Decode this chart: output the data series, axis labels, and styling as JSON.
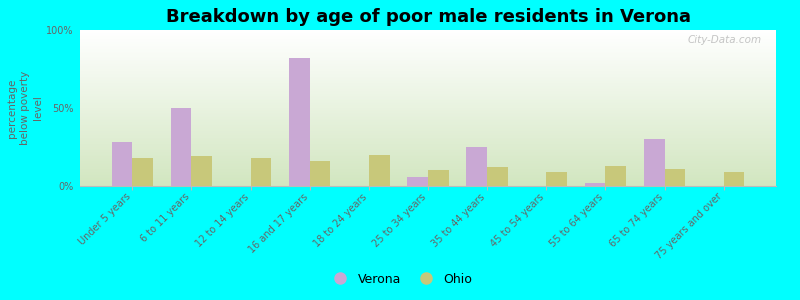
{
  "title": "Breakdown by age of poor male residents in Verona",
  "ylabel": "percentage\nbelow poverty\nlevel",
  "categories": [
    "Under 5 years",
    "6 to 11 years",
    "12 to 14 years",
    "16 and 17 years",
    "18 to 24 years",
    "25 to 34 years",
    "35 to 44 years",
    "45 to 54 years",
    "55 to 64 years",
    "65 to 74 years",
    "75 years and over"
  ],
  "verona_values": [
    28,
    50,
    0,
    82,
    0,
    6,
    25,
    0,
    2,
    30,
    0
  ],
  "ohio_values": [
    18,
    19,
    18,
    16,
    20,
    10,
    12,
    9,
    13,
    11,
    9
  ],
  "verona_color": "#c9a8d4",
  "ohio_color": "#c8c87a",
  "background_color": "#00ffff",
  "title_fontsize": 13,
  "axis_label_fontsize": 7.5,
  "tick_fontsize": 7,
  "legend_fontsize": 9,
  "bar_width": 0.35,
  "ylim": [
    0,
    100
  ],
  "yticks": [
    0,
    50,
    100
  ],
  "ytick_labels": [
    "0%",
    "50%",
    "100%"
  ],
  "text_color": "#666666",
  "watermark": "City-Data.com"
}
